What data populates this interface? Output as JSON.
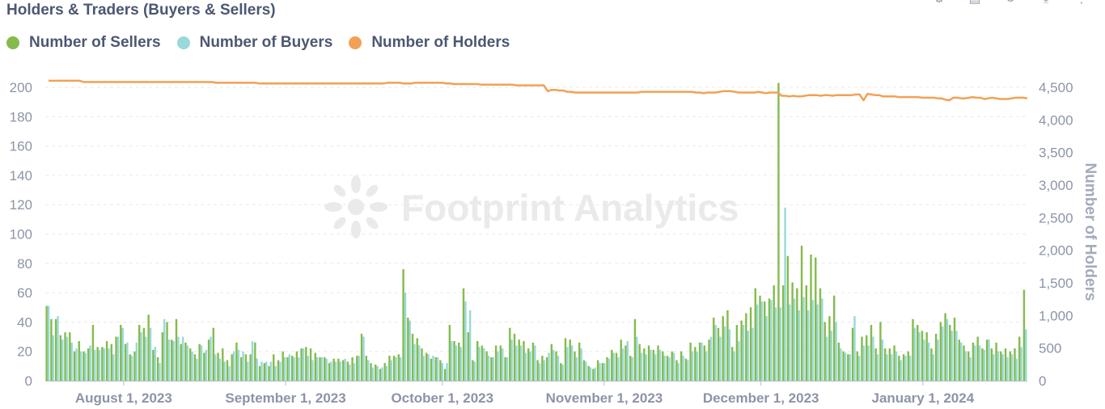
{
  "chart_title": "Holders & Traders (Buyers & Sellers)",
  "watermark": "Footprint Analytics",
  "toolbar_icons": [
    "settings-icon",
    "table-icon",
    "refresh-icon",
    "download-icon",
    "more-icon"
  ],
  "colors": {
    "sellers": "#84bb4c",
    "buyers": "#98d9d9",
    "holders": "#f2a155",
    "grid": "#e8eaee"
  },
  "chart_data": {
    "type": "bar",
    "title": "Holders & Traders (Buyers & Sellers)",
    "legend_position": "top-left",
    "grid": true,
    "x_start": "2023-07-17",
    "x_end": "2024-01-21",
    "x_ticks": [
      "August 1, 2023",
      "September 1, 2023",
      "October 1, 2023",
      "November 1, 2023",
      "December 1, 2023",
      "January 1, 2024"
    ],
    "y_left": {
      "min": 0,
      "max": 200,
      "ticks": [
        0,
        20,
        40,
        60,
        80,
        100,
        120,
        140,
        160,
        180,
        200
      ]
    },
    "y_right": {
      "label": "Number of Holders",
      "min": 0,
      "max": 4500,
      "ticks": [
        "0",
        "500",
        "1,000",
        "1,500",
        "2,000",
        "2,500",
        "3,000",
        "3,500",
        "4,000",
        "4,500"
      ]
    },
    "series": [
      {
        "name": "Number of Sellers",
        "type": "bar",
        "axis": "left",
        "values": [
          51,
          42,
          42,
          31,
          33,
          33,
          20,
          27,
          20,
          22,
          38,
          23,
          23,
          27,
          25,
          30,
          38,
          25,
          18,
          20,
          38,
          36,
          45,
          21,
          16,
          33,
          40,
          28,
          42,
          25,
          26,
          22,
          18,
          25,
          19,
          28,
          36,
          19,
          22,
          14,
          18,
          26,
          16,
          18,
          18,
          26,
          10,
          12,
          10,
          18,
          14,
          20,
          16,
          17,
          20,
          22,
          23,
          22,
          19,
          16,
          16,
          12,
          15,
          15,
          14,
          13,
          16,
          17,
          32,
          17,
          12,
          11,
          8,
          12,
          17,
          17,
          18,
          76,
          43,
          32,
          29,
          22,
          19,
          15,
          16,
          14,
          8,
          38,
          27,
          26,
          63,
          33,
          14,
          27,
          24,
          20,
          16,
          24,
          24,
          16,
          36,
          32,
          28,
          27,
          22,
          26,
          14,
          17,
          16,
          25,
          20,
          12,
          29,
          28,
          20,
          26,
          14,
          10,
          8,
          14,
          12,
          16,
          21,
          19,
          28,
          24,
          17,
          42,
          25,
          22,
          24,
          21,
          24,
          20,
          17,
          20,
          14,
          20,
          15,
          26,
          23,
          26,
          24,
          28,
          43,
          36,
          44,
          48,
          23,
          38,
          41,
          46,
          50,
          63,
          58,
          54,
          56,
          65,
          203,
          65,
          85,
          67,
          63,
          92,
          65,
          86,
          84,
          63,
          40,
          44,
          58,
          26,
          20,
          18,
          36,
          20,
          30,
          31,
          38,
          22,
          40,
          22,
          22,
          24,
          17,
          18,
          20,
          42,
          38,
          34,
          33,
          22,
          32,
          40,
          46,
          38,
          43,
          28,
          24,
          20,
          26,
          30,
          22,
          28,
          22,
          26,
          20,
          22,
          20,
          22,
          30,
          62
        ]
      },
      {
        "name": "Number of Buyers",
        "type": "bar",
        "axis": "left",
        "values": [
          51,
          31,
          44,
          28,
          30,
          26,
          22,
          20,
          19,
          24,
          21,
          21,
          22,
          22,
          18,
          30,
          36,
          26,
          17,
          26,
          33,
          30,
          36,
          23,
          12,
          42,
          28,
          27,
          30,
          30,
          24,
          20,
          15,
          24,
          21,
          30,
          18,
          15,
          13,
          10,
          20,
          21,
          20,
          13,
          27,
          15,
          13,
          13,
          13,
          10,
          13,
          16,
          18,
          16,
          16,
          22,
          17,
          14,
          16,
          16,
          15,
          13,
          13,
          13,
          15,
          11,
          12,
          17,
          30,
          14,
          9,
          10,
          9,
          10,
          14,
          16,
          16,
          60,
          41,
          25,
          24,
          17,
          18,
          17,
          16,
          12,
          12,
          27,
          24,
          23,
          54,
          48,
          13,
          23,
          22,
          17,
          16,
          20,
          22,
          16,
          28,
          24,
          24,
          19,
          20,
          24,
          12,
          14,
          19,
          21,
          17,
          11,
          23,
          24,
          16,
          22,
          13,
          9,
          9,
          12,
          12,
          15,
          19,
          16,
          22,
          27,
          16,
          30,
          19,
          18,
          21,
          18,
          21,
          17,
          16,
          19,
          12,
          17,
          14,
          20,
          20,
          26,
          20,
          30,
          38,
          30,
          37,
          35,
          20,
          27,
          38,
          34,
          36,
          52,
          54,
          44,
          55,
          50,
          50,
          118,
          52,
          56,
          48,
          57,
          48,
          55,
          52,
          56,
          30,
          34,
          40,
          22,
          19,
          18,
          44,
          17,
          24,
          24,
          30,
          18,
          28,
          18,
          18,
          20,
          14,
          17,
          17,
          36,
          33,
          28,
          26,
          18,
          28,
          37,
          42,
          34,
          34,
          26,
          20,
          16,
          24,
          24,
          21,
          28,
          18,
          20,
          18,
          16,
          18,
          15,
          23,
          35
        ]
      },
      {
        "name": "Number of Holders",
        "type": "line",
        "axis": "right",
        "values": [
          4600,
          4600,
          4600,
          4600,
          4600,
          4600,
          4600,
          4600,
          4600,
          4580,
          4580,
          4580,
          4580,
          4580,
          4580,
          4580,
          4580,
          4580,
          4580,
          4580,
          4580,
          4580,
          4580,
          4580,
          4580,
          4580,
          4580,
          4580,
          4580,
          4580,
          4580,
          4580,
          4580,
          4580,
          4580,
          4580,
          4580,
          4580,
          4580,
          4580,
          4580,
          4580,
          4580,
          4570,
          4570,
          4570,
          4570,
          4570,
          4570,
          4570,
          4570,
          4570,
          4570,
          4570,
          4560,
          4560,
          4560,
          4560,
          4560,
          4560,
          4560,
          4560,
          4560,
          4560,
          4560,
          4560,
          4560,
          4560,
          4560,
          4560,
          4560,
          4560,
          4560,
          4560,
          4560,
          4560,
          4560,
          4560,
          4560,
          4560,
          4560,
          4560,
          4560,
          4560,
          4560,
          4560,
          4560,
          4570,
          4570,
          4570,
          4570,
          4560,
          4560,
          4560,
          4570,
          4570,
          4570,
          4570,
          4570,
          4570,
          4570,
          4570,
          4560,
          4560,
          4550,
          4550,
          4550,
          4550,
          4550,
          4550,
          4550,
          4540,
          4540,
          4540,
          4540,
          4540,
          4540,
          4540,
          4540,
          4540,
          4530,
          4530,
          4530,
          4530,
          4530,
          4530,
          4530,
          4530,
          4440,
          4460,
          4460,
          4450,
          4450,
          4430,
          4430,
          4420,
          4420,
          4420,
          4420,
          4420,
          4420,
          4420,
          4420,
          4420,
          4420,
          4420,
          4420,
          4420,
          4420,
          4420,
          4420,
          4420,
          4430,
          4430,
          4430,
          4430,
          4430,
          4430,
          4430,
          4430,
          4430,
          4430,
          4430,
          4430,
          4430,
          4430,
          4420,
          4420,
          4410,
          4420,
          4420,
          4420,
          4430,
          4440,
          4440,
          4440,
          4430,
          4420,
          4420,
          4420,
          4420,
          4420,
          4430,
          4420,
          4410,
          4420,
          4420,
          4420,
          4370,
          4370,
          4360,
          4370,
          4360,
          4360,
          4370,
          4380,
          4380,
          4380,
          4370,
          4380,
          4380,
          4370,
          4380,
          4380,
          4380,
          4380,
          4380,
          4390,
          4390,
          4300,
          4400,
          4390,
          4380,
          4380,
          4360,
          4360,
          4360,
          4360,
          4350,
          4350,
          4350,
          4350,
          4350,
          4350,
          4340,
          4340,
          4340,
          4340,
          4330,
          4330,
          4310,
          4300,
          4340,
          4340,
          4330,
          4330,
          4340,
          4350,
          4340,
          4340,
          4320,
          4330,
          4340,
          4330,
          4320,
          4320,
          4320,
          4330,
          4340,
          4340,
          4340,
          4330
        ]
      }
    ]
  }
}
